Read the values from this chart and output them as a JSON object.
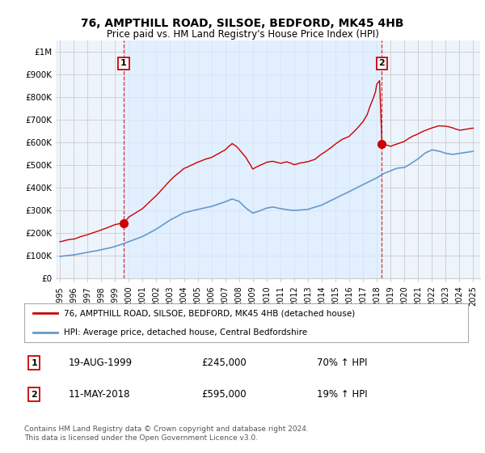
{
  "title": "76, AMPTHILL ROAD, SILSOE, BEDFORD, MK45 4HB",
  "subtitle": "Price paid vs. HM Land Registry's House Price Index (HPI)",
  "legend_line1": "76, AMPTHILL ROAD, SILSOE, BEDFORD, MK45 4HB (detached house)",
  "legend_line2": "HPI: Average price, detached house, Central Bedfordshire",
  "transaction1_date": "19-AUG-1999",
  "transaction1_price": "£245,000",
  "transaction1_hpi": "70% ↑ HPI",
  "transaction2_date": "11-MAY-2018",
  "transaction2_price": "£595,000",
  "transaction2_hpi": "19% ↑ HPI",
  "footer": "Contains HM Land Registry data © Crown copyright and database right 2024.\nThis data is licensed under the Open Government Licence v3.0.",
  "ylim": [
    0,
    1050000
  ],
  "yticks": [
    0,
    100000,
    200000,
    300000,
    400000,
    500000,
    600000,
    700000,
    800000,
    900000,
    1000000
  ],
  "ytick_labels": [
    "£0",
    "£100K",
    "£200K",
    "£300K",
    "£400K",
    "£500K",
    "£600K",
    "£700K",
    "£800K",
    "£900K",
    "£1M"
  ],
  "hpi_color": "#6699cc",
  "price_color": "#cc0000",
  "background_color": "#ffffff",
  "chart_bg_color": "#eef4fc",
  "shaded_region_color": "#ddeeff",
  "grid_color": "#cccccc",
  "transaction1_x": 1999.63,
  "transaction1_y": 245000,
  "transaction2_x": 2018.37,
  "transaction2_y": 595000,
  "xlim_left": 1994.7,
  "xlim_right": 2025.5,
  "xtick_years": [
    1995,
    1996,
    1997,
    1998,
    1999,
    2000,
    2001,
    2002,
    2003,
    2004,
    2005,
    2006,
    2007,
    2008,
    2009,
    2010,
    2011,
    2012,
    2013,
    2014,
    2015,
    2016,
    2017,
    2018,
    2019,
    2020,
    2021,
    2022,
    2023,
    2024,
    2025
  ]
}
